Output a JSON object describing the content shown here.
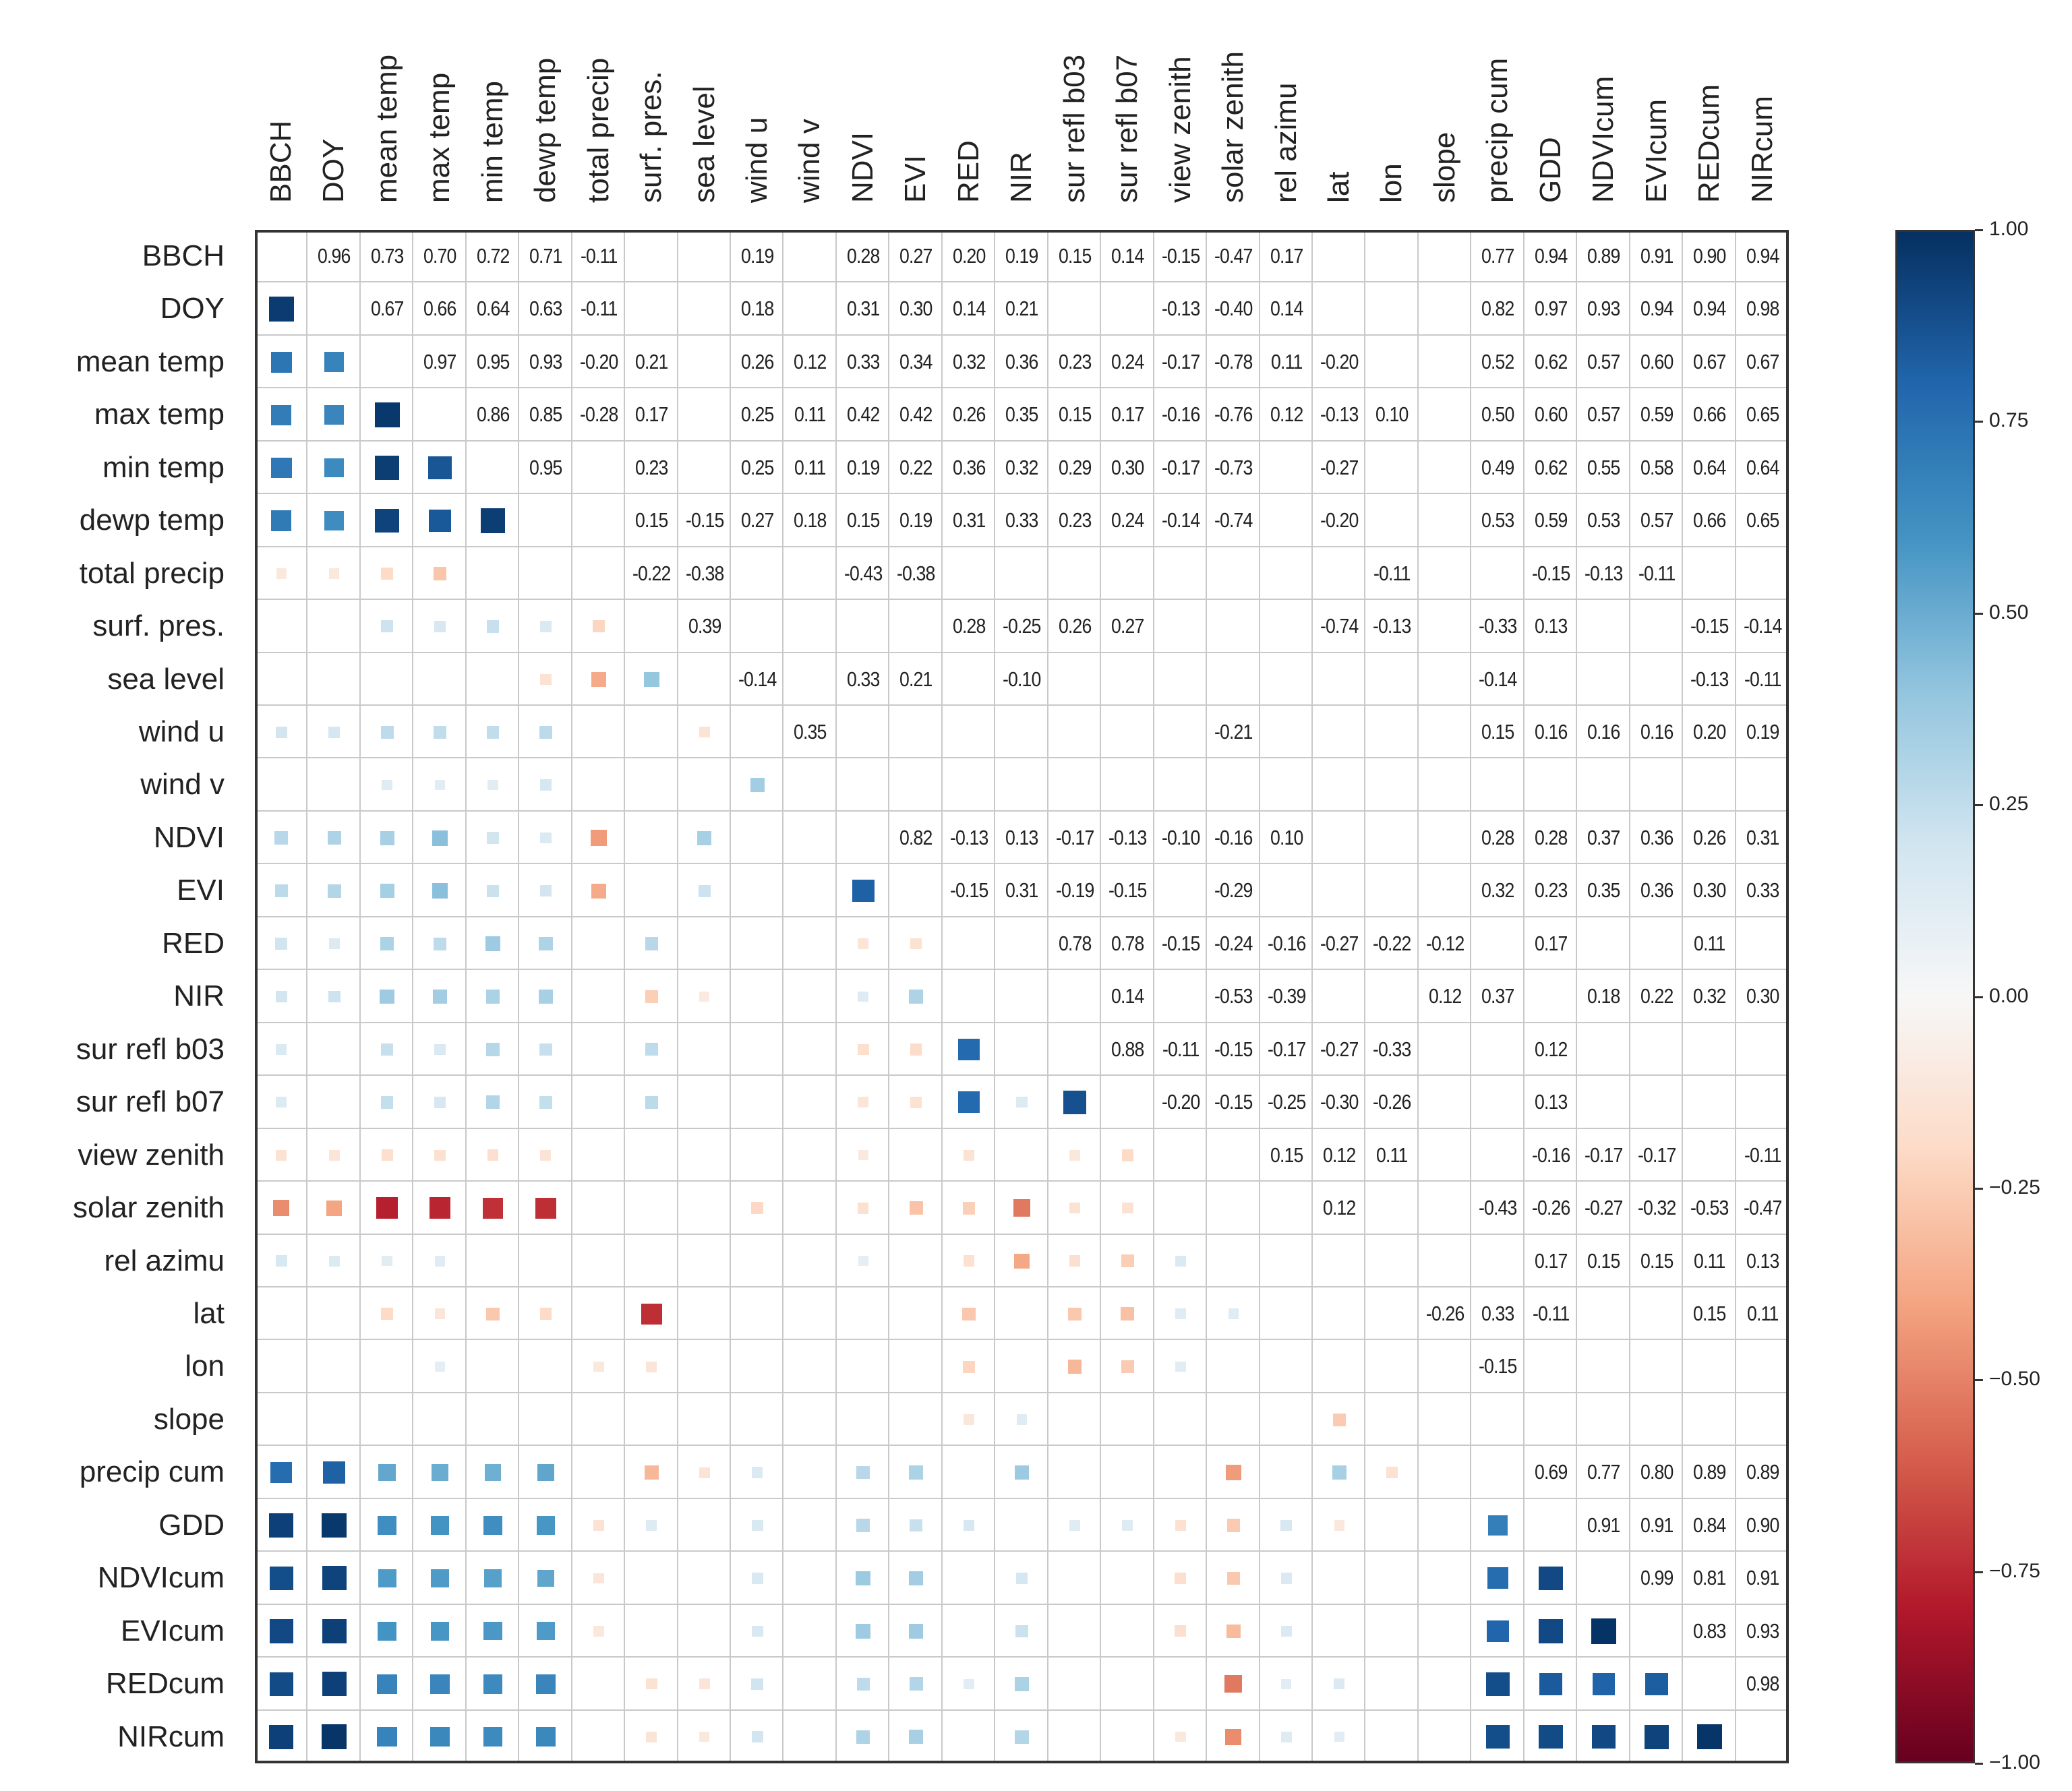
{
  "chart_data": {
    "type": "heatmap",
    "title": "",
    "variables": [
      "BBCH",
      "DOY",
      "mean temp",
      "max temp",
      "min temp",
      "dewp temp",
      "total precip",
      "surf. pres.",
      "sea level",
      "wind u",
      "wind v",
      "NDVI",
      "EVI",
      "RED",
      "NIR",
      "sur refl b03",
      "sur refl b07",
      "view zenith",
      "solar zenith",
      "rel azimu",
      "lat",
      "lon",
      "slope",
      "precip cum",
      "GDD",
      "NDVIcum",
      "EVIcum",
      "REDcum",
      "NIRcum"
    ],
    "upper_triangle": [
      [
        0.96,
        0.73,
        0.7,
        0.72,
        0.71,
        -0.11,
        null,
        null,
        0.19,
        null,
        0.28,
        0.27,
        0.2,
        0.19,
        0.15,
        0.14,
        -0.15,
        -0.47,
        0.17,
        null,
        null,
        null,
        0.77,
        0.94,
        0.89,
        0.91,
        0.9,
        0.94
      ],
      [
        0.67,
        0.66,
        0.64,
        0.63,
        -0.11,
        null,
        null,
        0.18,
        null,
        0.31,
        0.3,
        0.14,
        0.21,
        null,
        null,
        -0.13,
        -0.4,
        0.14,
        null,
        null,
        null,
        0.82,
        0.97,
        0.93,
        0.94,
        0.94,
        0.98
      ],
      [
        0.97,
        0.95,
        0.93,
        -0.2,
        0.21,
        null,
        0.26,
        0.12,
        0.33,
        0.34,
        0.32,
        0.36,
        0.23,
        0.24,
        -0.17,
        -0.78,
        0.11,
        -0.2,
        null,
        null,
        0.52,
        0.62,
        0.57,
        0.6,
        0.67,
        0.67
      ],
      [
        0.86,
        0.85,
        -0.28,
        0.17,
        null,
        0.25,
        0.11,
        0.42,
        0.42,
        0.26,
        0.35,
        0.15,
        0.17,
        -0.16,
        -0.76,
        0.12,
        -0.13,
        0.1,
        null,
        0.5,
        0.6,
        0.57,
        0.59,
        0.66,
        0.65
      ],
      [
        0.95,
        null,
        0.23,
        null,
        0.25,
        0.11,
        0.19,
        0.22,
        0.36,
        0.32,
        0.29,
        0.3,
        -0.17,
        -0.73,
        null,
        -0.27,
        null,
        null,
        0.49,
        0.62,
        0.55,
        0.58,
        0.64,
        0.64
      ],
      [
        null,
        0.15,
        -0.15,
        0.27,
        0.18,
        0.15,
        0.19,
        0.31,
        0.33,
        0.23,
        0.24,
        -0.14,
        -0.74,
        null,
        -0.2,
        null,
        null,
        0.53,
        0.59,
        0.53,
        0.57,
        0.66,
        0.65
      ],
      [
        -0.22,
        -0.38,
        null,
        null,
        -0.43,
        -0.38,
        null,
        null,
        null,
        null,
        null,
        null,
        null,
        null,
        -0.11,
        null,
        null,
        -0.15,
        -0.13,
        -0.11,
        null,
        null
      ],
      [
        0.39,
        null,
        null,
        null,
        null,
        0.28,
        -0.25,
        0.26,
        0.27,
        null,
        null,
        null,
        -0.74,
        -0.13,
        null,
        -0.33,
        0.13,
        null,
        null,
        -0.15,
        -0.14
      ],
      [
        -0.14,
        null,
        0.33,
        0.21,
        null,
        -0.1,
        null,
        null,
        null,
        null,
        null,
        null,
        null,
        null,
        -0.14,
        null,
        null,
        null,
        -0.13,
        -0.11
      ],
      [
        0.35,
        null,
        null,
        null,
        null,
        null,
        null,
        null,
        -0.21,
        null,
        null,
        null,
        null,
        0.15,
        0.16,
        0.16,
        0.16,
        0.2,
        0.19
      ],
      [
        null,
        null,
        null,
        null,
        null,
        null,
        null,
        null,
        null,
        null,
        null,
        null,
        null,
        null,
        null,
        null,
        null,
        null
      ],
      [
        0.82,
        -0.13,
        0.13,
        -0.17,
        -0.13,
        -0.1,
        -0.16,
        0.1,
        null,
        null,
        null,
        0.28,
        0.28,
        0.37,
        0.36,
        0.26,
        0.31
      ],
      [
        -0.15,
        0.31,
        -0.19,
        -0.15,
        null,
        -0.29,
        null,
        null,
        null,
        null,
        0.32,
        0.23,
        0.35,
        0.36,
        0.3,
        0.33
      ],
      [
        null,
        0.78,
        0.78,
        -0.15,
        -0.24,
        -0.16,
        -0.27,
        -0.22,
        -0.12,
        null,
        0.17,
        null,
        null,
        0.11,
        null
      ],
      [
        null,
        0.14,
        null,
        -0.53,
        -0.39,
        null,
        null,
        0.12,
        0.37,
        null,
        0.18,
        0.22,
        0.32,
        0.3
      ],
      [
        0.88,
        -0.11,
        -0.15,
        -0.17,
        -0.27,
        -0.33,
        null,
        null,
        0.12,
        null,
        null,
        null,
        null
      ],
      [
        -0.2,
        -0.15,
        -0.25,
        -0.3,
        -0.26,
        null,
        null,
        0.13,
        null,
        null,
        null,
        null
      ],
      [
        null,
        0.15,
        0.12,
        0.11,
        null,
        null,
        -0.16,
        -0.17,
        -0.17,
        null,
        -0.11
      ],
      [
        null,
        0.12,
        null,
        null,
        -0.43,
        -0.26,
        -0.27,
        -0.32,
        -0.53,
        -0.47
      ],
      [
        null,
        null,
        null,
        null,
        0.17,
        0.15,
        0.15,
        0.11,
        0.13
      ],
      [
        null,
        -0.26,
        0.33,
        -0.11,
        null,
        null,
        0.15,
        0.11
      ],
      [
        null,
        -0.15,
        null,
        null,
        null,
        null,
        null
      ],
      [
        null,
        null,
        null,
        null,
        null,
        null
      ],
      [
        0.69,
        0.77,
        0.8,
        0.89,
        0.89
      ],
      [
        0.91,
        0.91,
        0.84,
        0.9
      ],
      [
        0.99,
        0.81,
        0.91
      ],
      [
        0.83,
        0.93
      ],
      [
        0.98
      ]
    ],
    "display": "upper triangle: numeric values; lower triangle: squares sized and colored by correlation",
    "colorbar": {
      "range": [
        -1,
        1
      ],
      "colormap": [
        "#67001f",
        "#b2182b",
        "#d6604d",
        "#f4a582",
        "#fddbc7",
        "#f7f7f7",
        "#d1e5f0",
        "#92c5de",
        "#4393c3",
        "#2166ac",
        "#053061"
      ],
      "ticks": [
        1.0,
        0.75,
        0.5,
        0.25,
        0.0,
        -0.25,
        -0.5,
        -0.75,
        -1.0
      ],
      "tick_labels": [
        "1.00",
        "0.75",
        "0.50",
        "0.25",
        "0.00",
        "−0.25",
        "−0.50",
        "−0.75",
        "−1.00"
      ]
    }
  }
}
